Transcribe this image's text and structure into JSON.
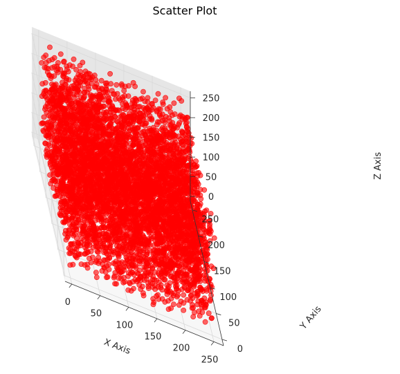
{
  "chart_data": {
    "type": "scatter",
    "projection": "3d",
    "title": "Scatter Plot",
    "xlabel": "X Axis",
    "ylabel": "Y Axis",
    "zlabel": "Z Axis",
    "xlim": [
      -12,
      267
    ],
    "ylim": [
      -12,
      267
    ],
    "zlim": [
      -12,
      267
    ],
    "xticks": [
      0,
      50,
      100,
      150,
      200,
      250
    ],
    "yticks": [
      0,
      50,
      100,
      150,
      200,
      250
    ],
    "zticks": [
      0,
      50,
      100,
      150,
      200,
      250
    ],
    "series": [
      {
        "marker_color": "#ff0000",
        "marker_alpha": 0.6,
        "distribution": "points fill the cube 0–255 on every axis (dense, uniform)",
        "value_range": [
          0,
          255
        ]
      }
    ],
    "grid": true
  },
  "colors": {
    "pane_left": "#f0f0f0",
    "pane_right": "#e6e6e6",
    "pane_floor": "#f7f7f7",
    "grid": "#d9d9d9",
    "marker": "#ff0000"
  }
}
